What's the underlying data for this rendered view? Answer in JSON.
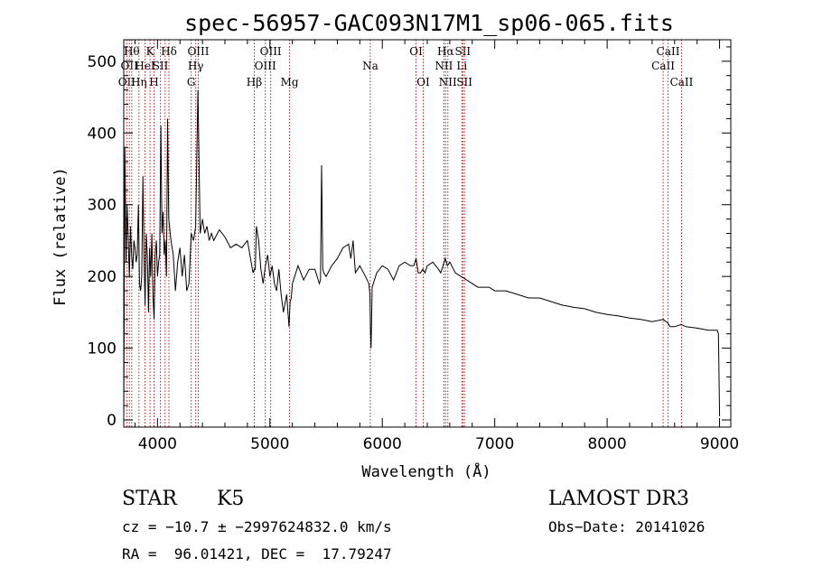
{
  "chart_data": {
    "type": "line",
    "title": "spec-56957-GAC093N17M1_sp06-065.fits",
    "xlabel": "Wavelength (Å)",
    "ylabel": "Flux (relative)",
    "xlim": [
      3700,
      9100
    ],
    "ylim": [
      -10,
      530
    ],
    "xticks": [
      4000,
      5000,
      6000,
      7000,
      8000,
      9000
    ],
    "yticks": [
      0,
      100,
      200,
      300,
      400,
      500
    ],
    "grid": false,
    "series": [
      {
        "name": "flux",
        "x": [
          3700,
          3710,
          3720,
          3730,
          3740,
          3750,
          3760,
          3770,
          3780,
          3790,
          3800,
          3810,
          3820,
          3830,
          3840,
          3850,
          3860,
          3870,
          3880,
          3890,
          3900,
          3910,
          3920,
          3930,
          3940,
          3950,
          3960,
          3970,
          3980,
          3990,
          4000,
          4010,
          4020,
          4030,
          4040,
          4050,
          4060,
          4070,
          4080,
          4090,
          4100,
          4120,
          4140,
          4160,
          4180,
          4200,
          4220,
          4240,
          4260,
          4280,
          4300,
          4320,
          4340,
          4360,
          4380,
          4400,
          4420,
          4440,
          4460,
          4480,
          4500,
          4550,
          4600,
          4650,
          4700,
          4750,
          4800,
          4850,
          4860,
          4870,
          4880,
          4900,
          4920,
          4940,
          4960,
          4980,
          5000,
          5020,
          5040,
          5060,
          5080,
          5100,
          5120,
          5150,
          5170,
          5180,
          5190,
          5200,
          5250,
          5300,
          5350,
          5400,
          5440,
          5450,
          5460,
          5470,
          5480,
          5500,
          5550,
          5600,
          5650,
          5700,
          5720,
          5740,
          5760,
          5800,
          5850,
          5880,
          5890,
          5895,
          5900,
          5910,
          5950,
          6000,
          6050,
          6100,
          6150,
          6200,
          6250,
          6280,
          6300,
          6320,
          6340,
          6360,
          6380,
          6400,
          6450,
          6500,
          6520,
          6540,
          6560,
          6580,
          6600,
          6650,
          6700,
          6750,
          6800,
          6850,
          6900,
          6950,
          7000,
          7100,
          7200,
          7300,
          7400,
          7500,
          7600,
          7700,
          7800,
          7900,
          8000,
          8100,
          8200,
          8300,
          8400,
          8500,
          8540,
          8560,
          8600,
          8660,
          8700,
          8800,
          8900,
          8980,
          8990,
          9000
        ],
        "values": [
          0,
          380,
          220,
          300,
          250,
          200,
          270,
          230,
          210,
          250,
          240,
          220,
          230,
          300,
          190,
          180,
          200,
          340,
          230,
          160,
          260,
          230,
          150,
          240,
          200,
          260,
          170,
          140,
          230,
          250,
          200,
          220,
          230,
          410,
          260,
          290,
          230,
          250,
          200,
          420,
          280,
          250,
          230,
          180,
          220,
          240,
          200,
          230,
          180,
          190,
          260,
          250,
          270,
          460,
          260,
          280,
          260,
          270,
          250,
          260,
          250,
          265,
          255,
          240,
          245,
          240,
          250,
          205,
          210,
          210,
          270,
          250,
          210,
          190,
          215,
          230,
          200,
          215,
          190,
          180,
          210,
          175,
          150,
          175,
          130,
          165,
          170,
          190,
          215,
          195,
          210,
          210,
          190,
          195,
          355,
          210,
          205,
          200,
          215,
          225,
          240,
          245,
          225,
          250,
          205,
          215,
          200,
          190,
          175,
          120,
          100,
          185,
          205,
          215,
          210,
          195,
          215,
          220,
          215,
          215,
          225,
          205,
          205,
          210,
          205,
          215,
          220,
          210,
          205,
          215,
          225,
          215,
          220,
          205,
          200,
          195,
          190,
          185,
          185,
          185,
          180,
          180,
          175,
          170,
          170,
          165,
          160,
          157,
          155,
          150,
          147,
          145,
          142,
          140,
          137,
          140,
          135,
          130,
          130,
          133,
          130,
          128,
          125,
          125,
          120,
          5
        ]
      }
    ],
    "lines": [
      {
        "w": 3727,
        "labels": [
          {
            "t": "OII",
            "row": 2
          }
        ]
      },
      {
        "w": 3750,
        "labels": [
          {
            "t": "OII",
            "row": 1
          }
        ]
      },
      {
        "w": 3771,
        "labels": [
          {
            "t": "Hθ",
            "row": 0
          }
        ]
      },
      {
        "w": 3835,
        "labels": [
          {
            "t": "Hη",
            "row": 2
          }
        ]
      },
      {
        "w": 3889,
        "labels": [
          {
            "t": "HeI",
            "row": 1
          }
        ]
      },
      {
        "w": 3934,
        "labels": [
          {
            "t": "K",
            "row": 0
          }
        ]
      },
      {
        "w": 3969,
        "labels": [
          {
            "t": "H",
            "row": 2
          }
        ]
      },
      {
        "w": 4026,
        "labels": [
          {
            "t": "SII",
            "row": 1
          }
        ]
      },
      {
        "w": 4068,
        "labels": [
          {
            "t": "",
            "row": 1
          }
        ]
      },
      {
        "w": 4102,
        "labels": [
          {
            "t": "Hδ",
            "row": 0
          }
        ]
      },
      {
        "w": 4300,
        "labels": [
          {
            "t": "G",
            "row": 2
          }
        ]
      },
      {
        "w": 4340,
        "labels": [
          {
            "t": "Hγ",
            "row": 1
          }
        ]
      },
      {
        "w": 4363,
        "labels": [
          {
            "t": "OIII",
            "row": 0
          }
        ]
      },
      {
        "w": 4861,
        "labels": [
          {
            "t": "Hβ",
            "row": 2
          }
        ]
      },
      {
        "w": 4959,
        "labels": [
          {
            "t": "OIII",
            "row": 1
          }
        ]
      },
      {
        "w": 5007,
        "labels": [
          {
            "t": "OIII",
            "row": 0
          }
        ]
      },
      {
        "w": 5175,
        "labels": [
          {
            "t": "Mg",
            "row": 2
          }
        ]
      },
      {
        "w": 5893,
        "labels": [
          {
            "t": "Na",
            "row": 1
          }
        ]
      },
      {
        "w": 6300,
        "labels": [
          {
            "t": "OI",
            "row": 0
          }
        ]
      },
      {
        "w": 6364,
        "labels": [
          {
            "t": "OI",
            "row": 2
          }
        ]
      },
      {
        "w": 6548,
        "labels": [
          {
            "t": "NII",
            "row": 1
          }
        ]
      },
      {
        "w": 6563,
        "labels": [
          {
            "t": "Hα",
            "row": 0
          }
        ]
      },
      {
        "w": 6583,
        "labels": [
          {
            "t": "NII",
            "row": 2
          }
        ]
      },
      {
        "w": 6708,
        "labels": [
          {
            "t": "Li",
            "row": 1
          }
        ]
      },
      {
        "w": 6716,
        "labels": [
          {
            "t": "SII",
            "row": 0
          }
        ]
      },
      {
        "w": 6731,
        "labels": [
          {
            "t": "SII",
            "row": 2
          }
        ]
      },
      {
        "w": 8498,
        "labels": [
          {
            "t": "CaII",
            "row": 1
          }
        ]
      },
      {
        "w": 8542,
        "labels": [
          {
            "t": "CaII",
            "row": 0
          }
        ]
      },
      {
        "w": 8662,
        "labels": [
          {
            "t": "CaII",
            "row": 2
          }
        ]
      }
    ]
  },
  "info": {
    "class": "STAR",
    "subclass": "K5",
    "survey": "LAMOST DR3",
    "cz": "cz = −10.7 ± −2997624832.0 km/s",
    "obs_date": "Obs−Date: 20141026",
    "radec": "RA =  96.01421, DEC =  17.79247"
  }
}
